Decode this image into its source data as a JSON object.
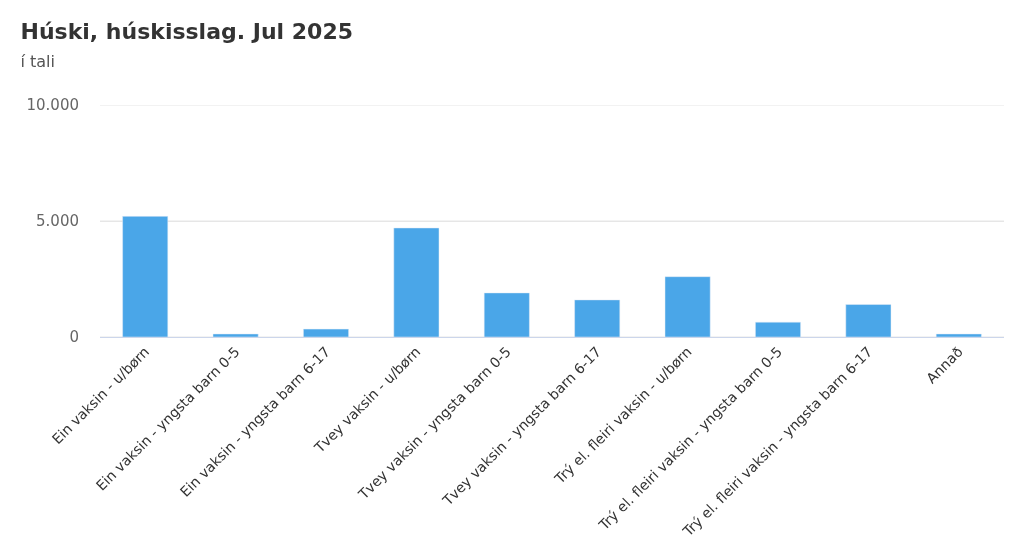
{
  "chart_data": {
    "type": "bar",
    "title": "Húski, húskisslag. Jul 2025",
    "subtitle": "í tali",
    "categories": [
      "Ein vaksin - u/børn",
      "Ein vaksin - yngsta barn 0-5",
      "Ein vaksin - yngsta barn 6-17",
      "Tvey vaksin - u/børn",
      "Tvey vaksin - yngsta barn 0-5",
      "Tvey vaksin - yngsta barn 6-17",
      "Trý el. fleiri vaksin - u/børn",
      "Trý el. fleiri vaksin - yngsta barn 0-5",
      "Trý el. fleiri vaksin - yngsta barn 6-17",
      "Annað"
    ],
    "values": [
      5200,
      130,
      340,
      4700,
      1900,
      1600,
      2600,
      640,
      1400,
      130
    ],
    "color": "#4aa6e8",
    "ylim": [
      0,
      10000
    ],
    "yticks": [
      {
        "value": 0,
        "label": "0"
      },
      {
        "value": 5000,
        "label": "5.000"
      },
      {
        "value": 10000,
        "label": "10.000"
      }
    ],
    "grid": "y"
  }
}
